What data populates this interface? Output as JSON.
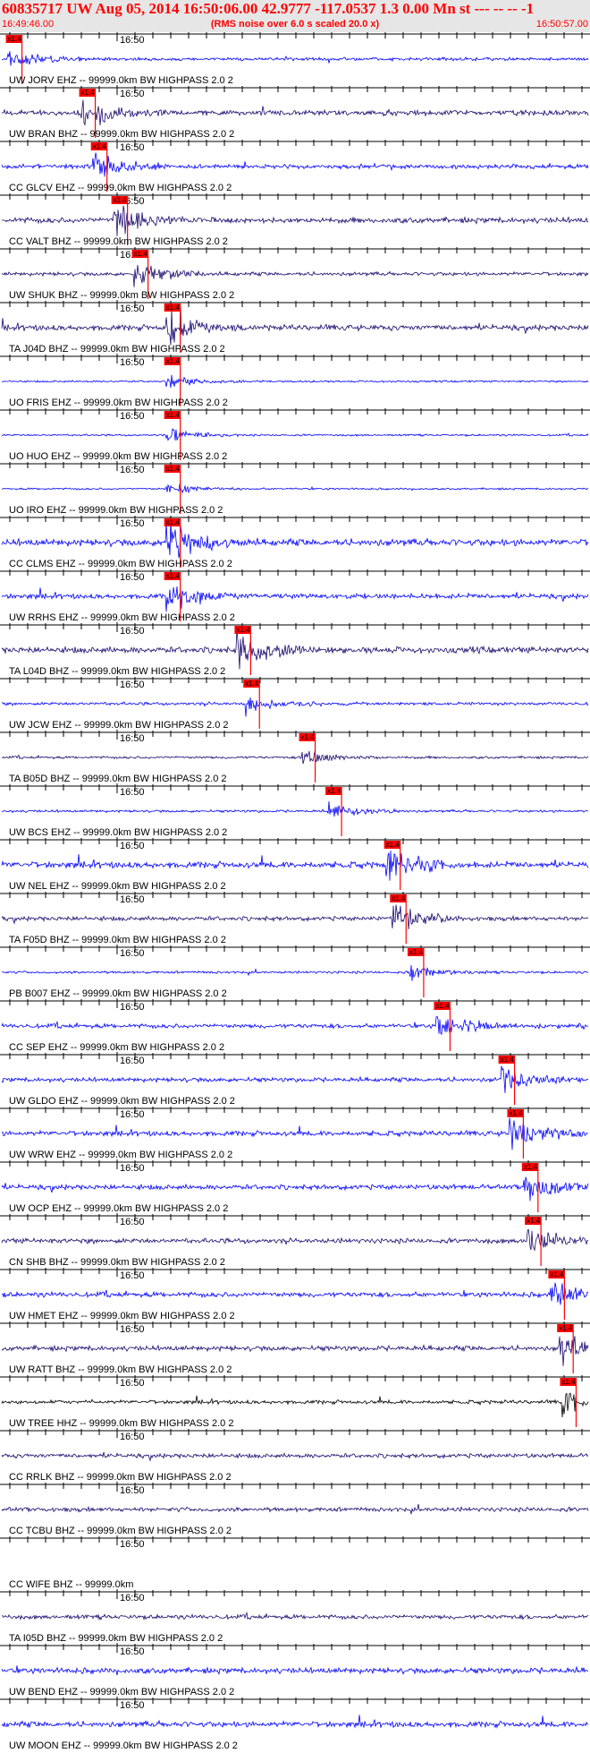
{
  "header": {
    "title": "60835717 UW Aug 05, 2014 16:50:06.00   42.9777 -117.0537  1.3 0.00 Mn st --- -- --  -1",
    "subtitle": "(RMS noise over 6.0 s scaled 20.0 x)",
    "time_start": "16:49:46.00",
    "time_end": "16:50:57.00"
  },
  "tick_label": "16:50",
  "pick_label": "x1.4",
  "colors": {
    "header_bg": "#e6e6e6",
    "header_text": "#ff0000",
    "trace_blue": "#0000ff",
    "trace_navy": "#1a0a6e",
    "trace_black": "#000000",
    "pick": "#ff0000"
  },
  "traces": [
    {
      "label": "UW JORV EHZ -- 99999.0km BW  HIGHPASS  2.0  2",
      "color": "blue",
      "pick": 0.01,
      "amp": 0.25
    },
    {
      "label": "UW BRAN BHZ -- 99999.0km BW  HIGHPASS  2.0  2",
      "color": "navy",
      "pick": 0.135,
      "amp": 0.4
    },
    {
      "label": "CC GLCV EHZ -- 99999.0km BW  HIGHPASS  2.0  2",
      "color": "blue",
      "pick": 0.155,
      "amp": 0.35
    },
    {
      "label": "CC VALT BHZ -- 99999.0km BW  HIGHPASS  2.0  2",
      "color": "navy",
      "pick": 0.19,
      "amp": 0.45
    },
    {
      "label": "UW SHUK BHZ -- 99999.0km BW  HIGHPASS  2.0  2",
      "color": "navy",
      "pick": 0.225,
      "amp": 0.3
    },
    {
      "label": "TA J04D BHZ -- 99999.0km BW  HIGHPASS  2.0  2",
      "color": "navy",
      "pick": 0.28,
      "amp": 0.45
    },
    {
      "label": "UO FRIS EHZ -- 99999.0km BW  HIGHPASS  2.0  2",
      "color": "blue",
      "pick": 0.28,
      "amp": 0.15
    },
    {
      "label": "UO HUO EHZ -- 99999.0km BW  HIGHPASS  2.0  2",
      "color": "blue",
      "pick": 0.28,
      "amp": 0.15
    },
    {
      "label": "UO IRO EHZ -- 99999.0km BW  HIGHPASS  2.0  2",
      "color": "blue",
      "pick": 0.28,
      "amp": 0.15
    },
    {
      "label": "CC CLMS EHZ -- 99999.0km BW  HIGHPASS  2.0  2",
      "color": "blue",
      "pick": 0.28,
      "amp": 0.55
    },
    {
      "label": "UW RRHS EHZ -- 99999.0km BW  HIGHPASS  2.0  2",
      "color": "blue",
      "pick": 0.28,
      "amp": 0.4
    },
    {
      "label": "TA L04D BHZ -- 99999.0km BW  HIGHPASS  2.0  2",
      "color": "navy",
      "pick": 0.4,
      "amp": 0.5
    },
    {
      "label": "UW JCW EHZ -- 99999.0km BW  HIGHPASS  2.0  2",
      "color": "blue",
      "pick": 0.415,
      "amp": 0.25
    },
    {
      "label": "TA B05D BHZ -- 99999.0km BW  HIGHPASS  2.0  2",
      "color": "navy",
      "pick": 0.51,
      "amp": 0.2
    },
    {
      "label": "UW BCS EHZ -- 99999.0km BW  HIGHPASS  2.0  2",
      "color": "blue",
      "pick": 0.555,
      "amp": 0.2
    },
    {
      "label": "UW NEL EHZ -- 99999.0km BW  HIGHPASS  2.0  2",
      "color": "blue",
      "pick": 0.655,
      "amp": 0.5
    },
    {
      "label": "TA F05D BHZ -- 99999.0km BW  HIGHPASS  2.0  2",
      "color": "navy",
      "pick": 0.665,
      "amp": 0.35
    },
    {
      "label": "PB B007 EHZ -- 99999.0km BW  HIGHPASS  2.0  2",
      "color": "blue",
      "pick": 0.695,
      "amp": 0.2
    },
    {
      "label": "CC SEP EHZ -- 99999.0km BW  HIGHPASS  2.0  2",
      "color": "blue",
      "pick": 0.74,
      "amp": 0.35
    },
    {
      "label": "UW GLDO EHZ -- 99999.0km BW  HIGHPASS  2.0  2",
      "color": "blue",
      "pick": 0.85,
      "amp": 0.35
    },
    {
      "label": "UW WRW EHZ -- 99999.0km BW  HIGHPASS  2.0  2",
      "color": "blue",
      "pick": 0.865,
      "amp": 0.4
    },
    {
      "label": "UW OCP EHZ -- 99999.0km BW  HIGHPASS  2.0  2",
      "color": "blue",
      "pick": 0.89,
      "amp": 0.4
    },
    {
      "label": "CN SHB BHZ -- 99999.0km BW  HIGHPASS  2.0  2",
      "color": "navy",
      "pick": 0.895,
      "amp": 0.4
    },
    {
      "label": "UW HMET EHZ -- 99999.0km BW  HIGHPASS  2.0  2",
      "color": "blue",
      "pick": 0.935,
      "amp": 0.4
    },
    {
      "label": "UW RATT BHZ -- 99999.0km BW  HIGHPASS  2.0  2",
      "color": "navy",
      "pick": 0.95,
      "amp": 0.4
    },
    {
      "label": "UW TREE HHZ -- 99999.0km BW  HIGHPASS  2.0  2",
      "color": "black",
      "pick": 0.955,
      "amp": 0.3
    },
    {
      "label": "CC RRLK BHZ -- 99999.0km BW  HIGHPASS  2.0  2",
      "color": "navy",
      "pick": null,
      "amp": 0.35
    },
    {
      "label": "CC TCBU BHZ -- 99999.0km BW  HIGHPASS  2.0  2",
      "color": "navy",
      "pick": null,
      "amp": 0.35
    },
    {
      "label": "CC WIFE BHZ -- 99999.0km",
      "color": "blue",
      "pick": null,
      "amp": 0.0
    },
    {
      "label": "TA I05D BHZ -- 99999.0km BW  HIGHPASS  2.0  2",
      "color": "navy",
      "pick": null,
      "amp": 0.35
    },
    {
      "label": "UW BEND EHZ -- 99999.0km BW  HIGHPASS  2.0  2",
      "color": "blue",
      "pick": null,
      "amp": 0.45
    },
    {
      "label": "UW MOON EHZ -- 99999.0km BW  HIGHPASS  2.0  2",
      "color": "blue",
      "pick": null,
      "amp": 0.45
    }
  ]
}
